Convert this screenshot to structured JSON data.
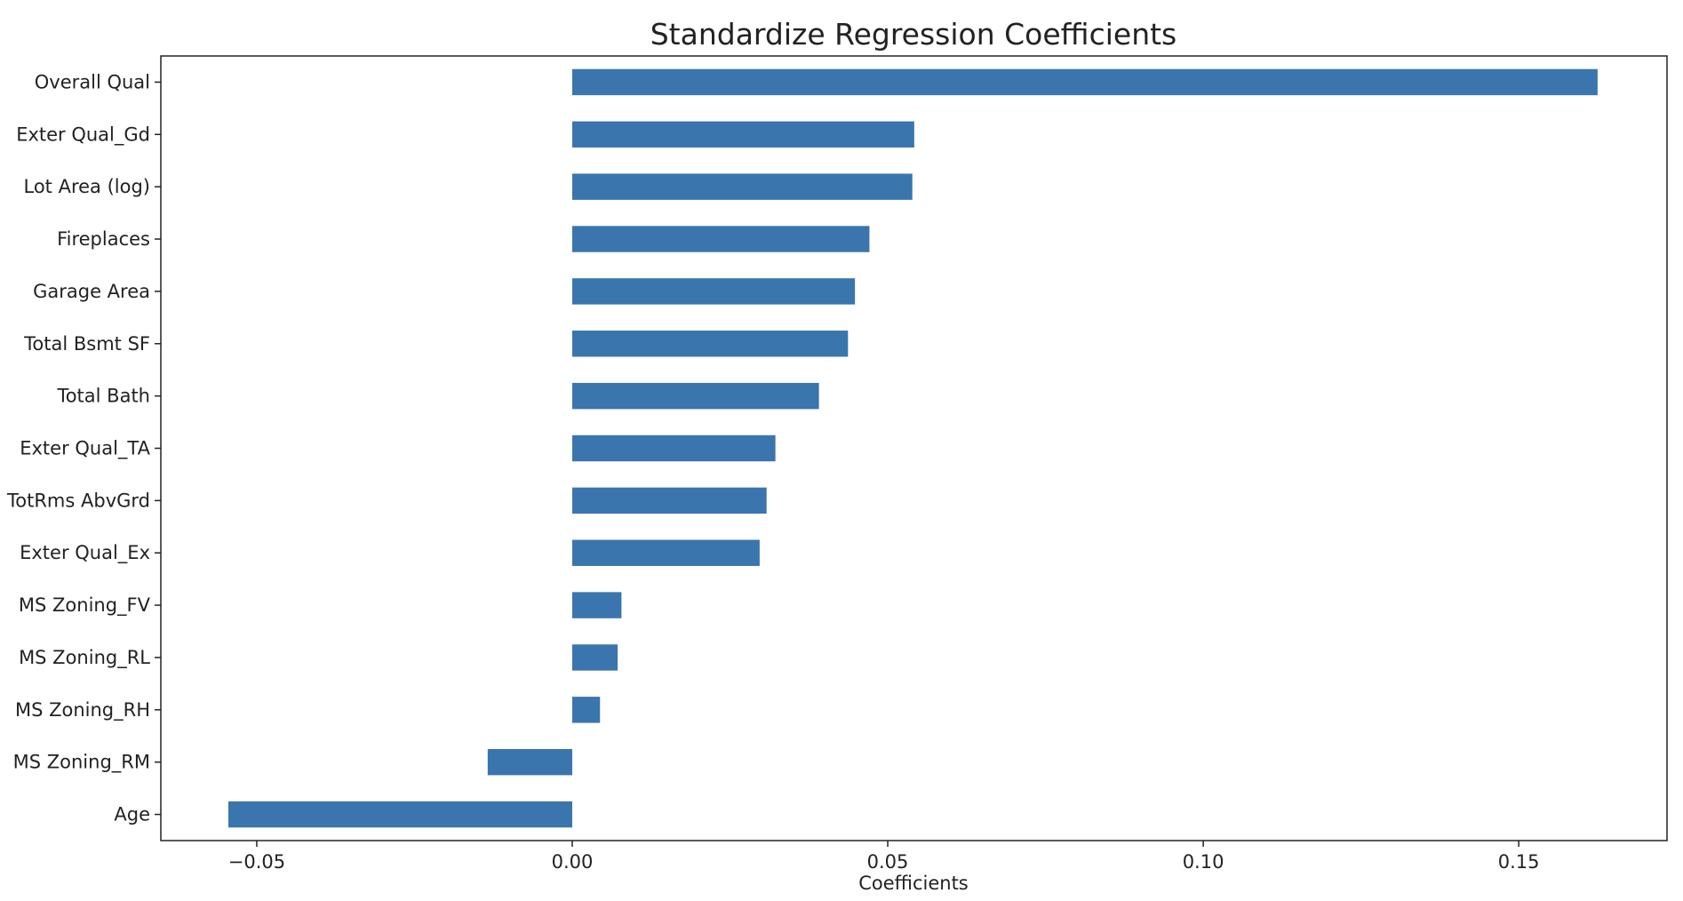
{
  "chart_data": {
    "type": "bar",
    "orientation": "horizontal",
    "title": "Standardize Regression Coefficients",
    "xlabel": "Coefficients",
    "ylabel": "",
    "categories": [
      "Overall Qual",
      "Exter Qual_Gd",
      "Lot Area (log)",
      "Fireplaces",
      "Garage Area",
      "Total Bsmt SF",
      "Total Bath",
      "Exter Qual_TA",
      "TotRms AbvGrd",
      "Exter Qual_Ex",
      "MS Zoning_FV",
      "MS Zoning_RL",
      "MS Zoning_RH",
      "MS Zoning_RM",
      "Age"
    ],
    "values": [
      0.1625,
      0.0542,
      0.0539,
      0.0471,
      0.0448,
      0.0437,
      0.0391,
      0.0322,
      0.0308,
      0.0297,
      0.0078,
      0.0072,
      0.0044,
      -0.0134,
      -0.0545
    ],
    "xlim": [
      -0.0652,
      0.1735
    ],
    "xticks": [
      -0.05,
      0.0,
      0.05,
      0.1,
      0.15
    ],
    "xtick_labels": [
      "−0.05",
      "0.00",
      "0.05",
      "0.10",
      "0.15"
    ],
    "grid": false,
    "legend": "none",
    "bar_color": "#3a75ae",
    "frame_color": "#222222"
  }
}
